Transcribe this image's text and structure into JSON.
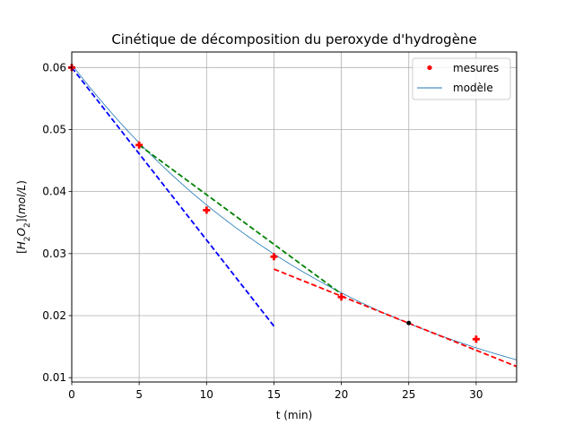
{
  "chart_data": {
    "type": "line",
    "title": "Cinétique de décomposition du peroxyde d'hydrogène",
    "xlabel": "t (min)",
    "ylabel": "[H2O2](mol/L)",
    "ylabel_parts": {
      "open": "[",
      "h": "H",
      "sub2a": "2",
      "o": "O",
      "sub2b": "2",
      "close": "](",
      "unit": "mol/L",
      "end": ")"
    },
    "xlim": [
      0,
      33
    ],
    "ylim": [
      0.0093,
      0.0625
    ],
    "xticks": [
      {
        "value": 0,
        "label": "0"
      },
      {
        "value": 5,
        "label": "5"
      },
      {
        "value": 10,
        "label": "10"
      },
      {
        "value": 15,
        "label": "15"
      },
      {
        "value": 20,
        "label": "20"
      },
      {
        "value": 25,
        "label": "25"
      },
      {
        "value": 30,
        "label": "30"
      }
    ],
    "yticks": [
      {
        "value": 0.01,
        "label": "0.01"
      },
      {
        "value": 0.02,
        "label": "0.02"
      },
      {
        "value": 0.03,
        "label": "0.03"
      },
      {
        "value": 0.04,
        "label": "0.04"
      },
      {
        "value": 0.05,
        "label": "0.05"
      },
      {
        "value": 0.06,
        "label": "0.06"
      }
    ],
    "grid": true,
    "legend_position": "top-right",
    "series": [
      {
        "name": "mesures",
        "kind": "marker",
        "marker": "plus",
        "color": "#ff0000",
        "points": [
          {
            "x": 0,
            "y": 0.06
          },
          {
            "x": 5,
            "y": 0.0475
          },
          {
            "x": 10,
            "y": 0.037
          },
          {
            "x": 15,
            "y": 0.0295
          },
          {
            "x": 20,
            "y": 0.023
          },
          {
            "x": 30,
            "y": 0.0162
          }
        ]
      },
      {
        "name": "modèle",
        "kind": "curve",
        "color": "#1f77b4",
        "model": {
          "c0": 0.0605,
          "k": 0.0469
        },
        "x_range": [
          0,
          33
        ]
      }
    ],
    "tangents": [
      {
        "color": "#0000ff",
        "style": "dashed",
        "points": [
          {
            "x": 0,
            "y": 0.06
          },
          {
            "x": 15,
            "y": 0.0183
          }
        ]
      },
      {
        "color": "#008000",
        "style": "dashed",
        "points": [
          {
            "x": 5,
            "y": 0.0475
          },
          {
            "x": 20,
            "y": 0.0235
          }
        ]
      },
      {
        "color": "#ff0000",
        "style": "dashed",
        "points": [
          {
            "x": 15,
            "y": 0.0275
          },
          {
            "x": 33,
            "y": 0.0118
          }
        ]
      }
    ],
    "annotations": [
      {
        "kind": "dot",
        "color": "#000000",
        "x": 25,
        "y": 0.0188
      }
    ]
  }
}
